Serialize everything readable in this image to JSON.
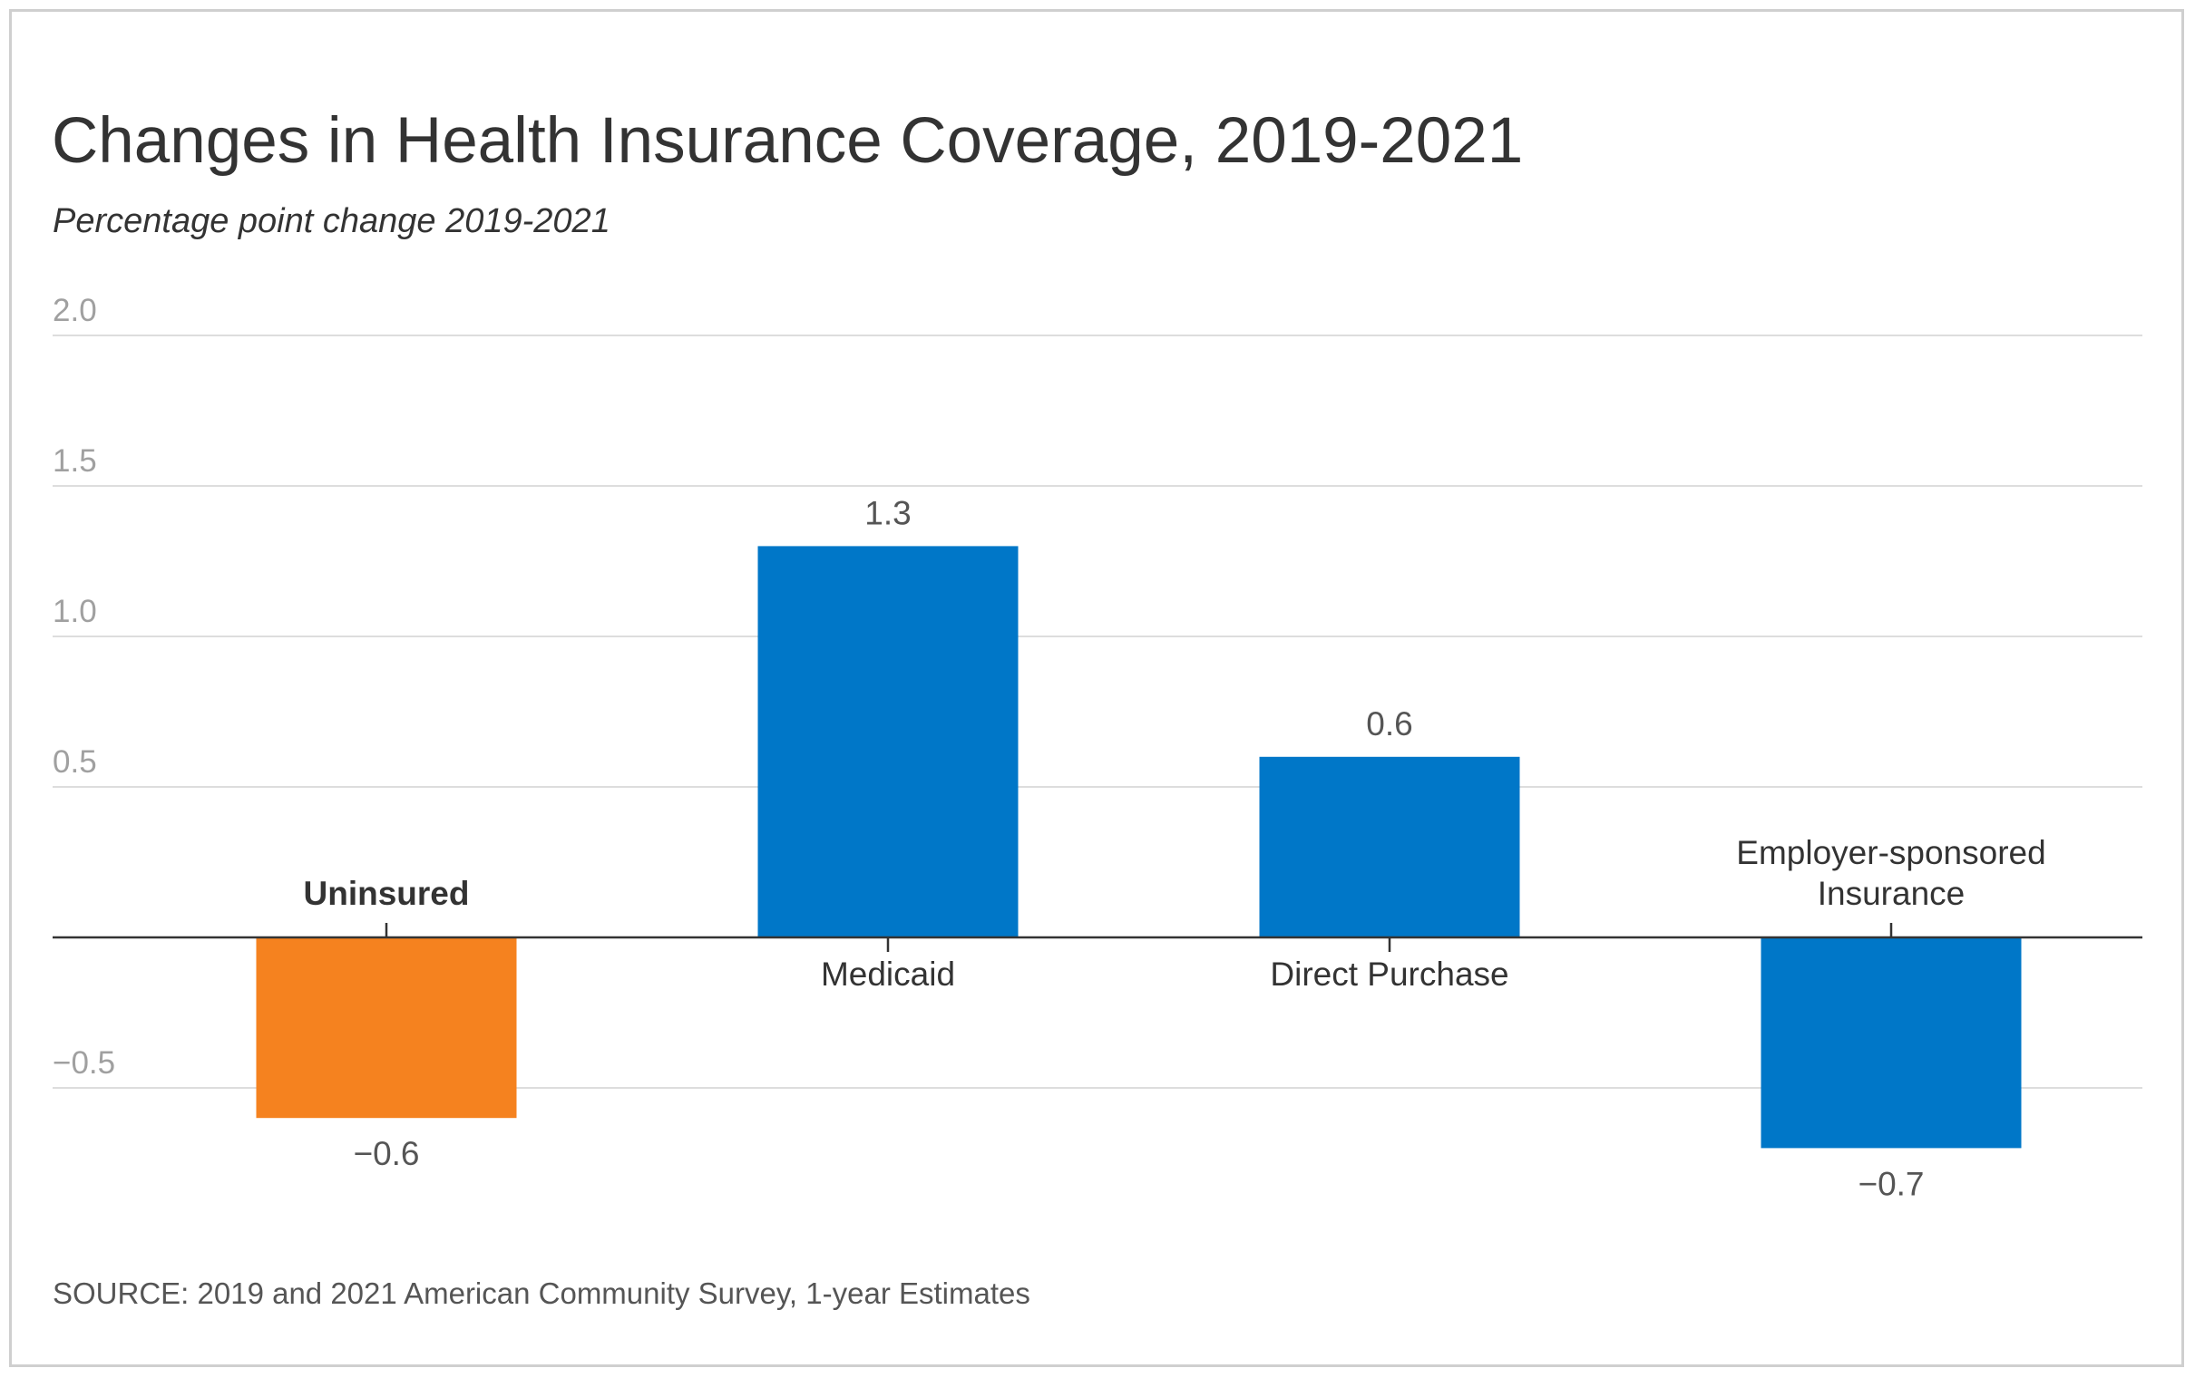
{
  "chart_data": {
    "type": "bar",
    "title": "Changes in Health Insurance Coverage, 2019-2021",
    "subtitle": "Percentage point change 2019-2021",
    "source": "SOURCE: 2019 and 2021 American Community Survey, 1-year Estimates",
    "xlabel": "",
    "ylabel": "",
    "ylim": [
      -0.85,
      2.0
    ],
    "yticks": [
      {
        "value": 2.0,
        "label": "2.0"
      },
      {
        "value": 1.5,
        "label": "1.5"
      },
      {
        "value": 1.0,
        "label": "1.0"
      },
      {
        "value": 0.5,
        "label": "0.5"
      },
      {
        "value": -0.5,
        "label": "−0.5"
      }
    ],
    "grid": true,
    "categories": [
      {
        "label": "Uninsured",
        "value": -0.6,
        "value_label": "−0.6",
        "color": "#f5821f",
        "bold": true
      },
      {
        "label": "Medicaid",
        "value": 1.3,
        "value_label": "1.3",
        "color": "#0077c8",
        "bold": false
      },
      {
        "label": "Direct Purchase",
        "value": 0.6,
        "value_label": "0.6",
        "color": "#0077c8",
        "bold": false
      },
      {
        "label": "Employer-sponsored\nInsurance",
        "value": -0.7,
        "value_label": "−0.7",
        "color": "#0077c8",
        "bold": false
      }
    ],
    "colors": {
      "highlight": "#f5821f",
      "bar": "#0077c8",
      "gridline": "#dddddd",
      "axis": "#333333",
      "tick_label": "#a0a0a0",
      "value_label": "#555555",
      "category_label": "#333333"
    }
  }
}
